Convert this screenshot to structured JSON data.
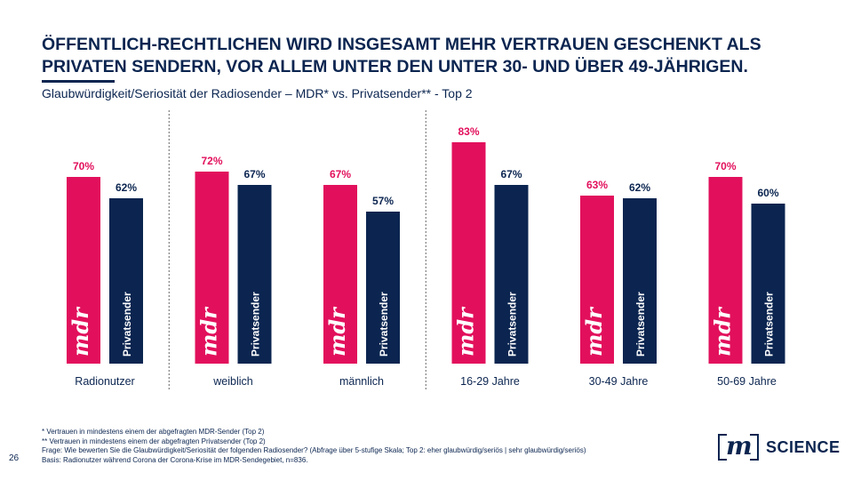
{
  "header": {
    "title": "ÖFFENTLICH-RECHTLICHEN WIRD INSGESAMT MEHR VERTRAUEN GESCHENKT ALS PRIVATEN SENDERN, VOR ALLEM UNTER DEN UNTER 30- UND ÜBER 49-JÄHRIGEN.",
    "subtitle": "Glaubwürdigkeit/Seriosität der Radiosender – MDR* vs. Privatsender** - Top 2"
  },
  "chart_data": {
    "type": "bar",
    "categories": [
      "Radionutzer",
      "weiblich",
      "männlich",
      "16-29 Jahre",
      "30-49 Jahre",
      "50-69 Jahre"
    ],
    "series": [
      {
        "name": "mdr",
        "values": [
          70,
          72,
          67,
          83,
          63,
          70
        ],
        "color": "#e2105c"
      },
      {
        "name": "Privatsender",
        "values": [
          62,
          67,
          57,
          67,
          62,
          60
        ],
        "color": "#0b2550"
      }
    ],
    "value_suffix": "%",
    "ylim": [
      0,
      100
    ],
    "grid": false,
    "legend": "none",
    "separators_after_category": [
      0,
      2
    ]
  },
  "footnotes": [
    "* Vertrauen in mindestens einem der abgefragten MDR-Sender (Top 2)",
    "** Vertrauen in mindestens einem der abgefragten Privatsender (Top 2)",
    "Frage: Wie bewerten Sie die Glaubwürdigkeit/Seriosität der folgenden Radiosender? (Abfrage über 5-stufige Skala; Top 2: eher glaubwürdig/seriös | sehr glaubwürdig/seriös)",
    "Basis: Radionutzer während Corona der Corona-Krise im MDR-Sendegebiet, n=836."
  ],
  "page_number": "26",
  "logo": {
    "mark": "m",
    "text": "SCIENCE"
  }
}
